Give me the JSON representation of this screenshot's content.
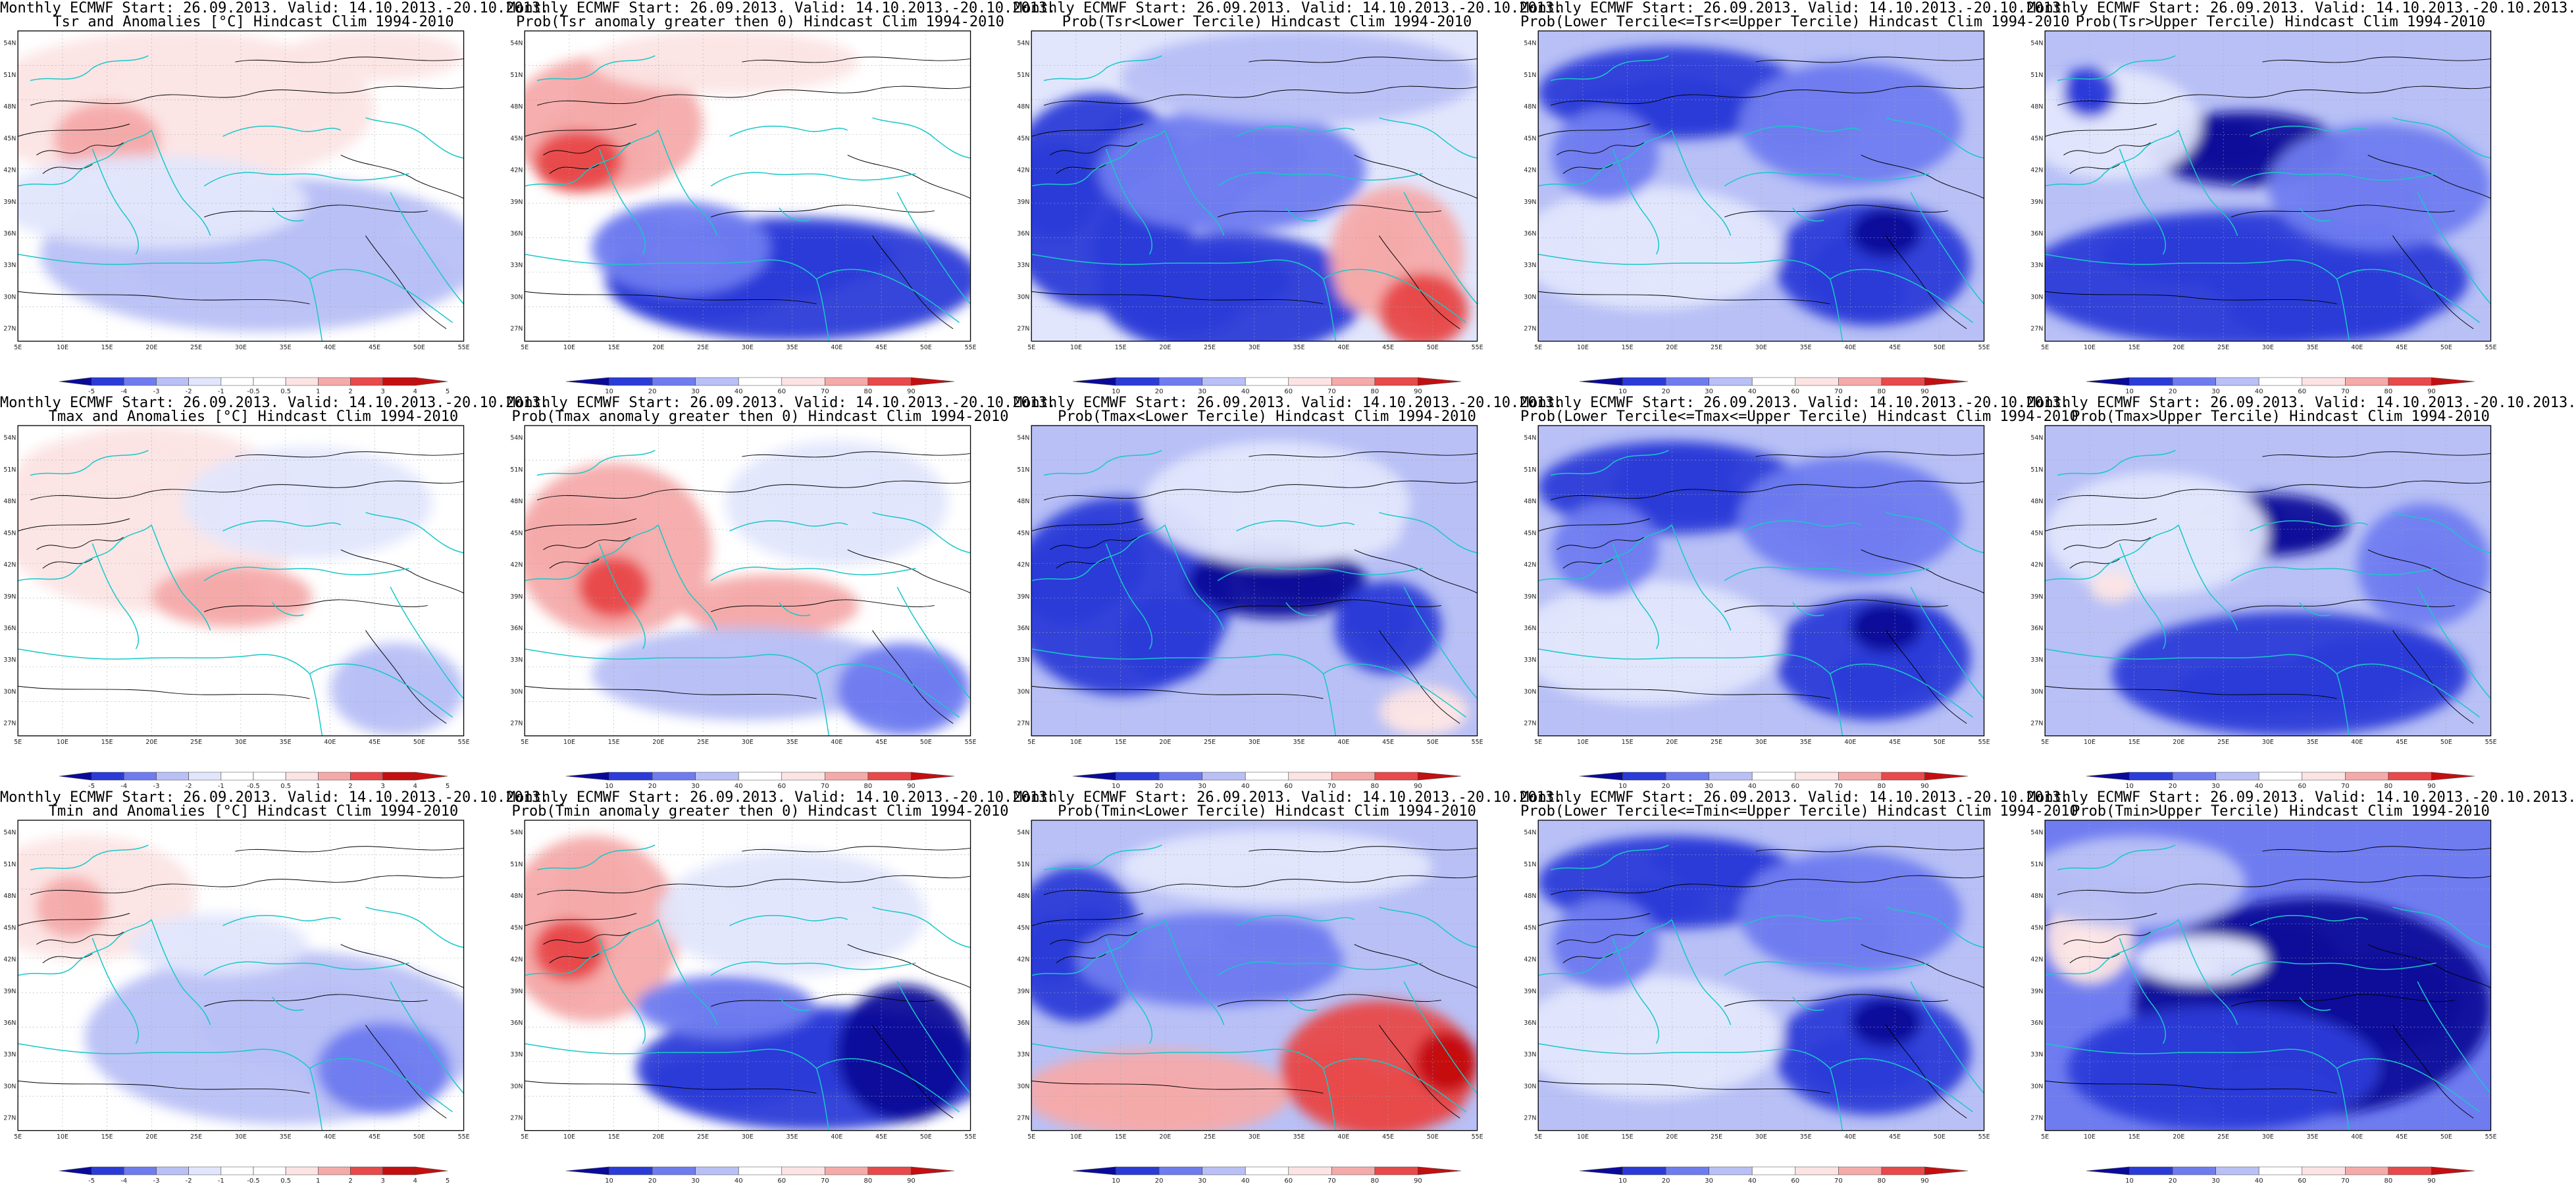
{
  "colors": {
    "deep_blue": "#0a0a9a",
    "blue": "#2b3bd8",
    "mid_blue": "#6f7cf0",
    "light_blue": "#b8c0f6",
    "pale_blue": "#e2e6fc",
    "pale_red": "#fce4e4",
    "light_red": "#f5aaaa",
    "red": "#e8494a",
    "deep_red": "#c40f10",
    "coast": "#18c8c8",
    "contour": "#000000"
  },
  "map_axes": {
    "y_ticks": [
      "54N",
      "51N",
      "48N",
      "45N",
      "42N",
      "39N",
      "36N",
      "33N",
      "30N",
      "27N"
    ],
    "x_ticks": [
      "5E",
      "10E",
      "15E",
      "20E",
      "25E",
      "30E",
      "35E",
      "40E",
      "45E",
      "50E",
      "55E"
    ]
  },
  "colorbars": {
    "anomaly": [
      "-5",
      "-4",
      "-3",
      "-2",
      "-1",
      "-0.5",
      "0.5",
      "1",
      "2",
      "3",
      "4",
      "5"
    ],
    "probability": [
      "10",
      "20",
      "30",
      "40",
      "60",
      "70",
      "80",
      "90"
    ]
  },
  "panels": [
    {
      "title1": "Monthly ECMWF Start: 26.09.2013. Valid: 14.10.2013.-20.10.2013.",
      "title2": "Tsr and Anomalies [°C] Hindcast Clim 1994-2010",
      "colorbar": "anomaly",
      "regime": "anomaly_mix"
    },
    {
      "title1": "Monthly ECMWF Start: 26.09.2013. Valid: 14.10.2013.-20.10.2013.",
      "title2": "Prob(Tsr anomaly greater then 0) Hindcast Clim 1994-2010",
      "colorbar": "probability",
      "regime": "gt0"
    },
    {
      "title1": "Monthly ECMWF Start: 26.09.2013. Valid: 14.10.2013.-20.10.2013.",
      "title2": "Prob(Tsr<Lower Tercile) Hindcast Clim 1994-2010",
      "colorbar": "probability",
      "regime": "lower"
    },
    {
      "title1": "Monthly ECMWF Start: 26.09.2013. Valid: 14.10.2013.-20.10.2013.",
      "title2": "Prob(Lower Tercile<=Tsr<=Upper Tercile) Hindcast Clim 1994-2010",
      "colorbar": "probability",
      "regime": "middle"
    },
    {
      "title1": "Monthly ECMWF Start: 26.09.2013. Valid: 14.10.2013.-20.10.2013.",
      "title2": "Prob(Tsr>Upper Tercile) Hindcast Clim 1994-2010",
      "colorbar": "probability",
      "regime": "upper"
    },
    {
      "title1": "Monthly ECMWF Start: 26.09.2013. Valid: 14.10.2013.-20.10.2013.",
      "title2": "Tmax and Anomalies [°C] Hindcast Clim 1994-2010",
      "colorbar": "anomaly",
      "regime": "anomaly_warm"
    },
    {
      "title1": "Monthly ECMWF Start: 26.09.2013. Valid: 14.10.2013.-20.10.2013.",
      "title2": "Prob(Tmax anomaly greater then 0) Hindcast Clim 1994-2010",
      "colorbar": "probability",
      "regime": "gt0_warm"
    },
    {
      "title1": "Monthly ECMWF Start: 26.09.2013. Valid: 14.10.2013.-20.10.2013.",
      "title2": "Prob(Tmax<Lower Tercile) Hindcast Clim 1994-2010",
      "colorbar": "probability",
      "regime": "lower_warm"
    },
    {
      "title1": "Monthly ECMWF Start: 26.09.2013. Valid: 14.10.2013.-20.10.2013.",
      "title2": "Prob(Lower Tercile<=Tmax<=Upper Tercile) Hindcast Clim 1994-2010",
      "colorbar": "probability",
      "regime": "middle"
    },
    {
      "title1": "Monthly ECMWF Start: 26.09.2013. Valid: 14.10.2013.-20.10.2013.",
      "title2": "Prob(Tmax>Upper Tercile) Hindcast Clim 1994-2010",
      "colorbar": "probability",
      "regime": "upper_warm"
    },
    {
      "title1": "Monthly ECMWF Start: 26.09.2013. Valid: 14.10.2013.-20.10.2013.",
      "title2": "Tmin and Anomalies [°C] Hindcast Clim 1994-2010",
      "colorbar": "anomaly",
      "regime": "anomaly_cold"
    },
    {
      "title1": "Monthly ECMWF Start: 26.09.2013. Valid: 14.10.2013.-20.10.2013.",
      "title2": "Prob(Tmin anomaly greater then 0) Hindcast Clim 1994-2010",
      "colorbar": "probability",
      "regime": "gt0_cold"
    },
    {
      "title1": "Monthly ECMWF Start: 26.09.2013. Valid: 14.10.2013.-20.10.2013.",
      "title2": "Prob(Tmin<Lower Tercile) Hindcast Clim 1994-2010",
      "colorbar": "probability",
      "regime": "lower_cold"
    },
    {
      "title1": "Monthly ECMWF Start: 26.09.2013. Valid: 14.10.2013.-20.10.2013.",
      "title2": "Prob(Lower Tercile<=Tmin<=Upper Tercile) Hindcast Clim 1994-2010",
      "colorbar": "probability",
      "regime": "middle"
    },
    {
      "title1": "Monthly ECMWF Start: 26.09.2013. Valid: 14.10.2013.-20.10.2013.",
      "title2": "Prob(Tmin>Upper Tercile) Hindcast Clim 1994-2010",
      "colorbar": "probability",
      "regime": "upper_cold"
    }
  ]
}
